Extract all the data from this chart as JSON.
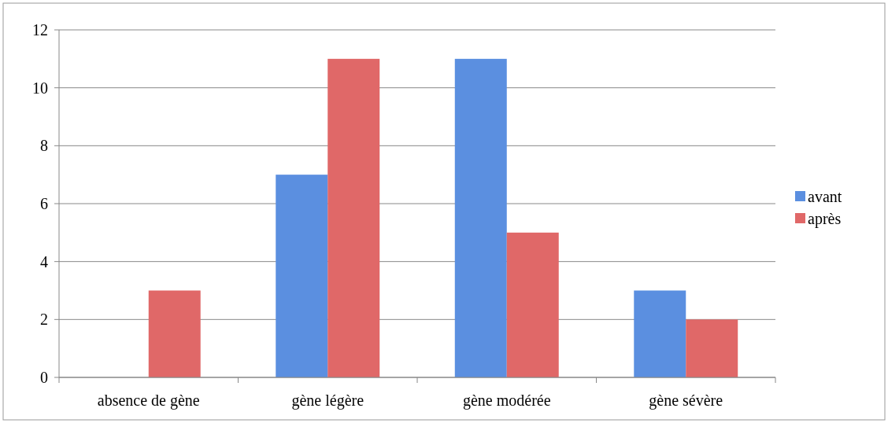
{
  "chart_data": {
    "type": "bar",
    "categories": [
      "absence de gène",
      "gène légère",
      "gène modérée",
      "gène sévère"
    ],
    "series": [
      {
        "name": "avant",
        "color": "#5b8fe0",
        "values": [
          0,
          7,
          11,
          3
        ]
      },
      {
        "name": "après",
        "color": "#e06868",
        "values": [
          3,
          11,
          5,
          2
        ]
      }
    ],
    "ylim": [
      0,
      12
    ],
    "yticks": [
      0,
      2,
      4,
      6,
      8,
      10,
      12
    ],
    "grid": "y",
    "legend": "right"
  }
}
